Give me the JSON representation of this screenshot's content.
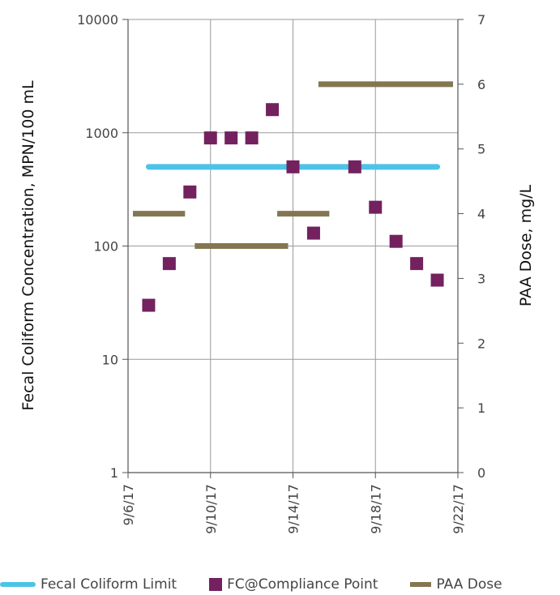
{
  "colors": {
    "limit": "#4dc3e6",
    "compliance": "#73215f",
    "paa": "#837752",
    "grid": "#9a9a9a",
    "axis": "#555555"
  },
  "chart_data": {
    "type": "scatter",
    "ylabel": "Fecal Coliform Concentration, MPN/100 mL",
    "y2label": "PAA Dose, mg/L",
    "yscale": "log",
    "ylim": [
      1,
      10000
    ],
    "y2lim": [
      0,
      7
    ],
    "xlim": [
      "9/6/17",
      "9/22/17"
    ],
    "x_ticks": [
      "9/6/17",
      "9/10/17",
      "9/14/17",
      "9/18/17",
      "9/22/17"
    ],
    "y_ticks": [
      "1",
      "10",
      "100",
      "1000",
      "10000"
    ],
    "y2_ticks": [
      "0",
      "1",
      "2",
      "3",
      "4",
      "5",
      "6",
      "7"
    ],
    "grid": true,
    "legend_position": "bottom",
    "series": [
      {
        "name": "Fecal Coliform Limit",
        "kind": "line",
        "axis": "left",
        "points": [
          [
            "9/7/17",
            500
          ],
          [
            "9/21/17",
            500
          ]
        ]
      },
      {
        "name": "FC@Compliance Point",
        "kind": "scatter",
        "axis": "left",
        "points": [
          [
            "9/7/17",
            30
          ],
          [
            "9/8/17",
            70
          ],
          [
            "9/9/17",
            300
          ],
          [
            "9/10/17",
            900
          ],
          [
            "9/11/17",
            900
          ],
          [
            "9/12/17",
            900
          ],
          [
            "9/13/17",
            1600
          ],
          [
            "9/14/17",
            500
          ],
          [
            "9/15/17",
            130
          ],
          [
            "9/17/17",
            500
          ],
          [
            "9/18/17",
            220
          ],
          [
            "9/19/17",
            110
          ],
          [
            "9/20/17",
            70
          ],
          [
            "9/21/17",
            50
          ]
        ]
      },
      {
        "name": "PAA Dose",
        "kind": "segments",
        "axis": "right",
        "segments": [
          {
            "start": "9/6/17",
            "end": "9/9/17",
            "value": 4
          },
          {
            "start": "9/9/17",
            "end": "9/14/17",
            "value": 3.5
          },
          {
            "start": "9/13/17",
            "end": "9/16/17",
            "value": 4
          },
          {
            "start": "9/15/17",
            "end": "9/22/17",
            "value": 6
          }
        ]
      }
    ]
  }
}
